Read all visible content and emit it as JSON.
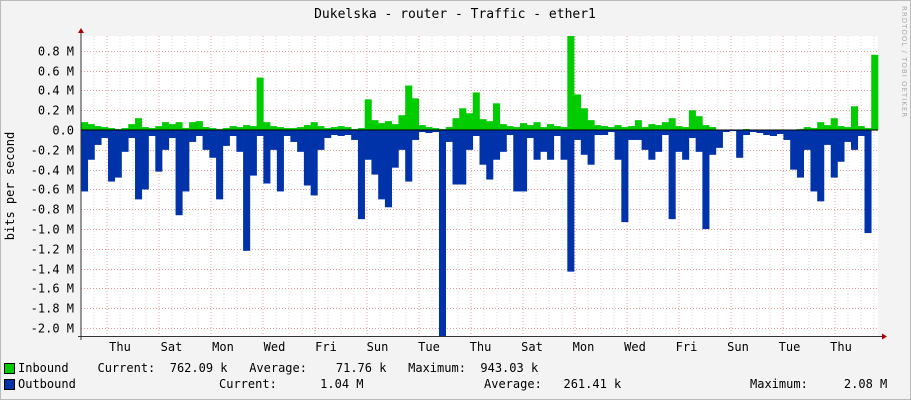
{
  "colors": {
    "inbound": "#00cc00",
    "outbound": "#0033aa",
    "grid_major": "#e0a0a0",
    "grid_minor": "#d8d8d8",
    "axis": "#333333"
  },
  "chart_data": {
    "type": "area",
    "title": "Dukelska - router - Traffic - ether1",
    "ylabel": "bits per second",
    "watermark": "RRDTOOL / TOBI OETIKER",
    "unit_suffix": "M",
    "ylim": [
      -2.08,
      0.95
    ],
    "y_ticks": [
      0.8,
      0.6,
      0.4,
      0.2,
      0.0,
      -0.2,
      -0.4,
      -0.6,
      -0.8,
      -1.0,
      -1.2,
      -1.4,
      -1.6,
      -1.8,
      -2.0
    ],
    "y_tick_labels": [
      "0.8 M",
      "0.6 M",
      "0.4 M",
      "0.2 M",
      "0.0",
      "-0.2 M",
      "-0.4 M",
      "-0.6 M",
      "-0.8 M",
      "-1.0 M",
      "-1.2 M",
      "-1.4 M",
      "-1.6 M",
      "-1.8 M",
      "-2.0 M"
    ],
    "x_tick_labels": [
      "Thu",
      "Sat",
      "Mon",
      "Wed",
      "Fri",
      "Sun",
      "Tue",
      "Thu",
      "Sat",
      "Mon",
      "Wed",
      "Fri",
      "Sun",
      "Tue",
      "Thu"
    ],
    "series": [
      {
        "name": "Inbound",
        "values": [
          0.08,
          0.06,
          0.04,
          0.03,
          0.02,
          0.01,
          0.02,
          0.06,
          0.12,
          0.03,
          0.02,
          0.04,
          0.08,
          0.06,
          0.08,
          0.02,
          0.08,
          0.09,
          0.03,
          0.02,
          0.01,
          0.02,
          0.04,
          0.03,
          0.05,
          0.04,
          0.53,
          0.08,
          0.04,
          0.03,
          0.02,
          0.02,
          0.03,
          0.05,
          0.08,
          0.04,
          0.02,
          0.03,
          0.04,
          0.03,
          0.01,
          0.02,
          0.31,
          0.1,
          0.07,
          0.09,
          0.06,
          0.15,
          0.45,
          0.32,
          0.05,
          0.03,
          0.02,
          0.01,
          0.03,
          0.12,
          0.22,
          0.17,
          0.38,
          0.11,
          0.09,
          0.27,
          0.06,
          0.04,
          0.03,
          0.07,
          0.05,
          0.08,
          0.03,
          0.06,
          0.04,
          0.03,
          0.95,
          0.36,
          0.22,
          0.1,
          0.05,
          0.04,
          0.03,
          0.05,
          0.03,
          0.04,
          0.1,
          0.03,
          0.06,
          0.05,
          0.08,
          0.12,
          0.04,
          0.03,
          0.2,
          0.14,
          0.05,
          0.03,
          0.0,
          0.0,
          0.0,
          0.0,
          0.01,
          0.0,
          0.0,
          0.0,
          0.0,
          0.0,
          0.0,
          0.0,
          0.01,
          0.03,
          0.02,
          0.08,
          0.05,
          0.12,
          0.04,
          0.03,
          0.24,
          0.04,
          0.02,
          0.76
        ],
        "current": "762.09 k",
        "average": "71.76 k",
        "maximum": "943.03 k"
      },
      {
        "name": "Outbound",
        "values": [
          -0.62,
          -0.3,
          -0.15,
          -0.08,
          -0.52,
          -0.48,
          -0.22,
          -0.08,
          -0.7,
          -0.6,
          -0.06,
          -0.42,
          -0.2,
          -0.08,
          -0.86,
          -0.62,
          -0.12,
          -0.06,
          -0.2,
          -0.28,
          -0.7,
          -0.16,
          -0.06,
          -0.22,
          -1.22,
          -0.46,
          -0.06,
          -0.54,
          -0.2,
          -0.62,
          -0.06,
          -0.12,
          -0.22,
          -0.56,
          -0.66,
          -0.2,
          -0.08,
          -0.05,
          -0.06,
          -0.05,
          -0.1,
          -0.9,
          -0.3,
          -0.45,
          -0.7,
          -0.78,
          -0.38,
          -0.2,
          -0.52,
          -0.1,
          -0.02,
          -0.03,
          -0.02,
          -2.08,
          -0.12,
          -0.55,
          -0.55,
          -0.2,
          -0.06,
          -0.35,
          -0.5,
          -0.3,
          -0.22,
          -0.05,
          -0.62,
          -0.62,
          -0.08,
          -0.3,
          -0.22,
          -0.3,
          -0.06,
          -0.3,
          -1.43,
          -0.1,
          -0.25,
          -0.35,
          -0.05,
          -0.05,
          -0.02,
          -0.3,
          -0.93,
          -0.1,
          -0.1,
          -0.2,
          -0.3,
          -0.22,
          -0.05,
          -0.9,
          -0.22,
          -0.3,
          -0.08,
          -0.22,
          -1.0,
          -0.25,
          -0.18,
          -0.02,
          -0.01,
          -0.28,
          -0.05,
          -0.02,
          -0.03,
          -0.05,
          -0.06,
          -0.04,
          -0.1,
          -0.4,
          -0.48,
          -0.2,
          -0.62,
          -0.72,
          -0.15,
          -0.48,
          -0.32,
          -0.12,
          -0.2,
          -0.06,
          -1.04
        ],
        "current": "1.04 M",
        "average": "261.41 k",
        "maximum": "2.08 M"
      }
    ],
    "grid": true,
    "legend_position": "bottom-left"
  },
  "legend": {
    "inbound_text": "Inbound    Current:  762.09 k   Average:    71.76 k   Maximum:  943.03 k",
    "outbound_label": "Outbound",
    "outbound_current": "Current:      1.04 M",
    "outbound_average": "Average:   261.41 k",
    "outbound_maximum": "Maximum:     2.08 M"
  }
}
